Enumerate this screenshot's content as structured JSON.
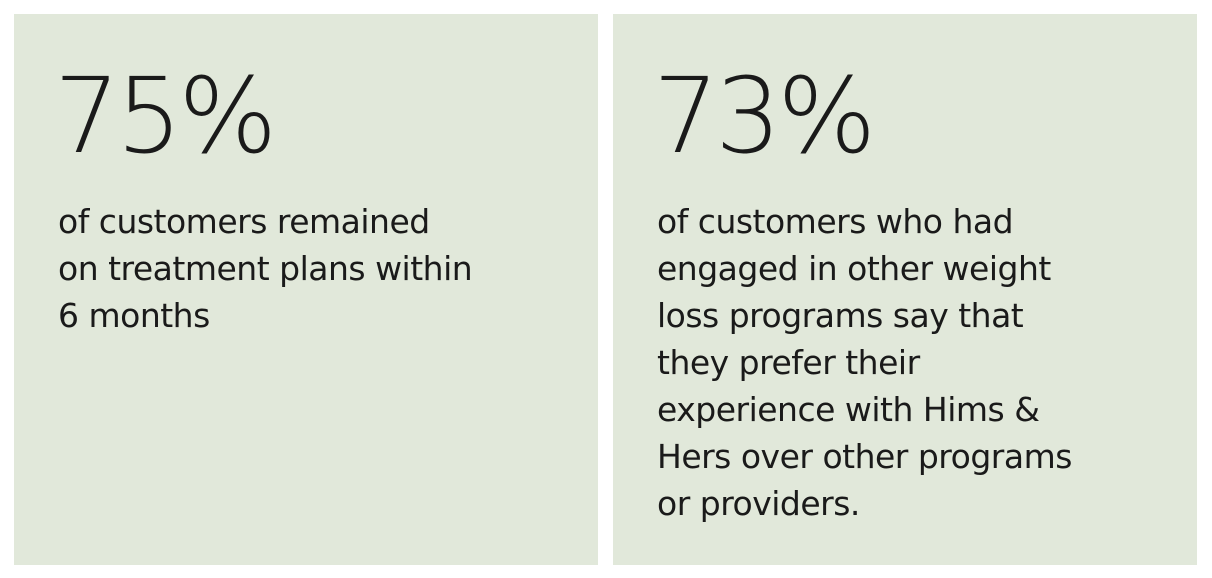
{
  "cards": [
    {
      "stat": "75%",
      "lines": [
        "of customers remained",
        "on treatment plans within",
        "6 months"
      ]
    },
    {
      "stat": "73%",
      "lines": [
        "of customers who had",
        "engaged in other weight",
        "loss programs say that",
        "they prefer their",
        "experience with Hims &",
        "Hers over other programs",
        "or providers."
      ]
    }
  ]
}
